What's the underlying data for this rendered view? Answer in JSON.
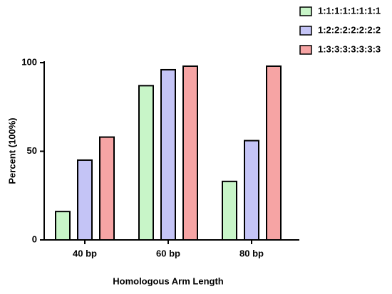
{
  "chart_data": {
    "type": "bar",
    "xlabel": "Homologous Arm Length",
    "ylabel": "Percent (100%)",
    "categories": [
      "40 bp",
      "60 bp",
      "80 bp"
    ],
    "series": [
      {
        "name": "1:1:1:1:1:1:1:1",
        "color": "#c8f5c8",
        "values": [
          16,
          87,
          33
        ]
      },
      {
        "name": "1:2:2:2:2:2:2:2",
        "color": "#c4c4f6",
        "values": [
          45,
          96,
          56
        ]
      },
      {
        "name": "1:3:3:3:3:3:3:3",
        "color": "#f6a4a4",
        "values": [
          58,
          98,
          98
        ]
      }
    ],
    "ylim": [
      0,
      100
    ],
    "yticks": [
      0,
      50,
      100
    ],
    "legend": "top-right"
  }
}
